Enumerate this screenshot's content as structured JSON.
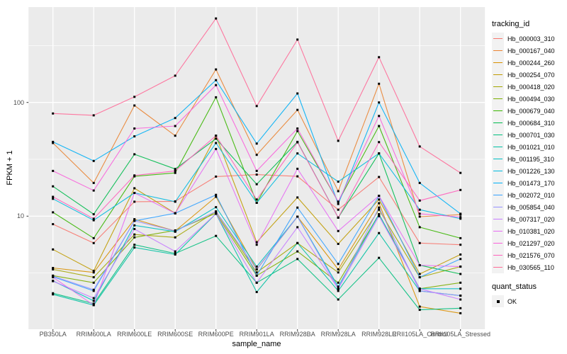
{
  "chart_data": {
    "type": "line",
    "xlabel": "sample_name",
    "ylabel": "FPKM + 1",
    "y_scale": "log10",
    "y_ticks": [
      100,
      10
    ],
    "y_minor_gridlines": [
      316.2,
      31.62,
      3.162
    ],
    "ylim": [
      1.03,
      690
    ],
    "grid": "on",
    "legend_position": "right",
    "panel_bg": "#EBEBEB",
    "grid_color": "#FFFFFF",
    "point_color": "#000000",
    "tick_text_color": "#4d4d4d",
    "categories": [
      "PB350LA",
      "RRIM600LA",
      "RRIM600LE",
      "RRIM600SE",
      "RRIM600PE",
      "RRIM901LA",
      "RRIM928BA",
      "RRIM928LA",
      "RRIM928LE",
      "RRII105LA_Control",
      "RRII105LA_Stressed"
    ],
    "series": [
      {
        "name": "Hb_000003_310",
        "color": "#F8766D",
        "values": [
          8.5,
          5.8,
          13.4,
          13.5,
          22.3,
          23.2,
          22.4,
          11.4,
          22.1,
          5.8,
          5.6
        ]
      },
      {
        "name": "Hb_000167_040",
        "color": "#EA8331",
        "values": [
          44,
          19.6,
          94,
          51,
          195,
          34.6,
          86,
          16.6,
          146,
          9.9,
          10.3
        ]
      },
      {
        "name": "Hb_000244_260",
        "color": "#D89000",
        "values": [
          3.5,
          3.2,
          9.4,
          7.4,
          14.8,
          3.4,
          9.9,
          3.4,
          13.0,
          1.6,
          1.4
        ]
      },
      {
        "name": "Hb_000254_070",
        "color": "#C09B00",
        "values": [
          5.1,
          3.3,
          17.6,
          10.6,
          51,
          5.9,
          14.6,
          5.7,
          14.0,
          3.1,
          4.6
        ]
      },
      {
        "name": "Hb_000418_020",
        "color": "#A3A500",
        "values": [
          3.4,
          2.9,
          6.9,
          6.5,
          11.0,
          3.2,
          5.8,
          3.2,
          11.4,
          2.9,
          3.6
        ]
      },
      {
        "name": "Hb_000494_030",
        "color": "#7CAE00",
        "values": [
          3.0,
          2.6,
          6.5,
          7.5,
          10.6,
          3.0,
          4.9,
          2.6,
          10.4,
          2.3,
          2.6
        ]
      },
      {
        "name": "Hb_000679_040",
        "color": "#39B600",
        "values": [
          10.8,
          6.4,
          22.4,
          24,
          111,
          13.1,
          56,
          13.4,
          62,
          8.0,
          6.4
        ]
      },
      {
        "name": "Hb_000684_310",
        "color": "#00BB4E",
        "values": [
          18.3,
          10.4,
          35,
          26,
          48,
          19.1,
          45,
          9.7,
          35.6,
          3.7,
          3.1
        ]
      },
      {
        "name": "Hb_000701_030",
        "color": "#00BF7D",
        "values": [
          2.1,
          1.7,
          5.6,
          4.7,
          6.7,
          2.6,
          4.2,
          1.85,
          4.3,
          1.5,
          1.55
        ]
      },
      {
        "name": "Hb_001021_010",
        "color": "#00C1A3",
        "values": [
          2.05,
          1.65,
          5.3,
          4.6,
          10.5,
          2.15,
          5.8,
          2.2,
          7.1,
          2.2,
          2.0
        ]
      },
      {
        "name": "Hb_001195_310",
        "color": "#00BFC4",
        "values": [
          2.7,
          1.8,
          8.3,
          7.3,
          12,
          3.6,
          9.9,
          2.4,
          10.4,
          2.3,
          2.3
        ]
      },
      {
        "name": "Hb_001226_130",
        "color": "#00BAE0",
        "values": [
          14.2,
          9.2,
          16.0,
          13.4,
          44,
          13.1,
          35.6,
          20.1,
          35.6,
          11.4,
          9.5
        ]
      },
      {
        "name": "Hb_001473_170",
        "color": "#00B0F6",
        "values": [
          45,
          30.6,
          50.3,
          73,
          157,
          43.5,
          120,
          12.8,
          100,
          19.6,
          10.5
        ]
      },
      {
        "name": "Hb_002072_010",
        "color": "#35A2FF",
        "values": [
          2.93,
          2.2,
          9.1,
          10.6,
          15.4,
          3.0,
          11.9,
          3.8,
          15.1,
          2.9,
          4.2
        ]
      },
      {
        "name": "Hb_005854_040",
        "color": "#9590FF",
        "values": [
          2.97,
          2.25,
          9.1,
          7.4,
          11.0,
          3.4,
          9.9,
          2.3,
          11.9,
          2.2,
          2.0
        ]
      },
      {
        "name": "Hb_007317_020",
        "color": "#C77CFF",
        "values": [
          2.68,
          1.9,
          7.7,
          4.9,
          10.5,
          2.6,
          8.0,
          2.3,
          10.0,
          2.3,
          1.85
        ]
      },
      {
        "name": "Hb_010381_020",
        "color": "#E76BF3",
        "values": [
          2.9,
          1.65,
          16.0,
          10.6,
          39,
          5.6,
          26.1,
          7.4,
          15.1,
          3.7,
          3.6
        ]
      },
      {
        "name": "Hb_021297_020",
        "color": "#FA62DB",
        "values": [
          25,
          16.8,
          59,
          62,
          142,
          25,
          59,
          13.4,
          76,
          10.5,
          9.8
        ]
      },
      {
        "name": "Hb_021576_070",
        "color": "#FF62BC",
        "values": [
          14.8,
          9.5,
          22.8,
          25,
          51,
          14,
          44.6,
          9.7,
          44.8,
          13.7,
          17.0
        ]
      },
      {
        "name": "Hb_030565_110",
        "color": "#FF6A98",
        "values": [
          80,
          77,
          112,
          172,
          548,
          93,
          357,
          46,
          250,
          41,
          24
        ]
      }
    ],
    "legend": {
      "series_title": "tracking_id",
      "status_title": "quant_status",
      "status_items": [
        {
          "label": "OK"
        }
      ]
    }
  }
}
